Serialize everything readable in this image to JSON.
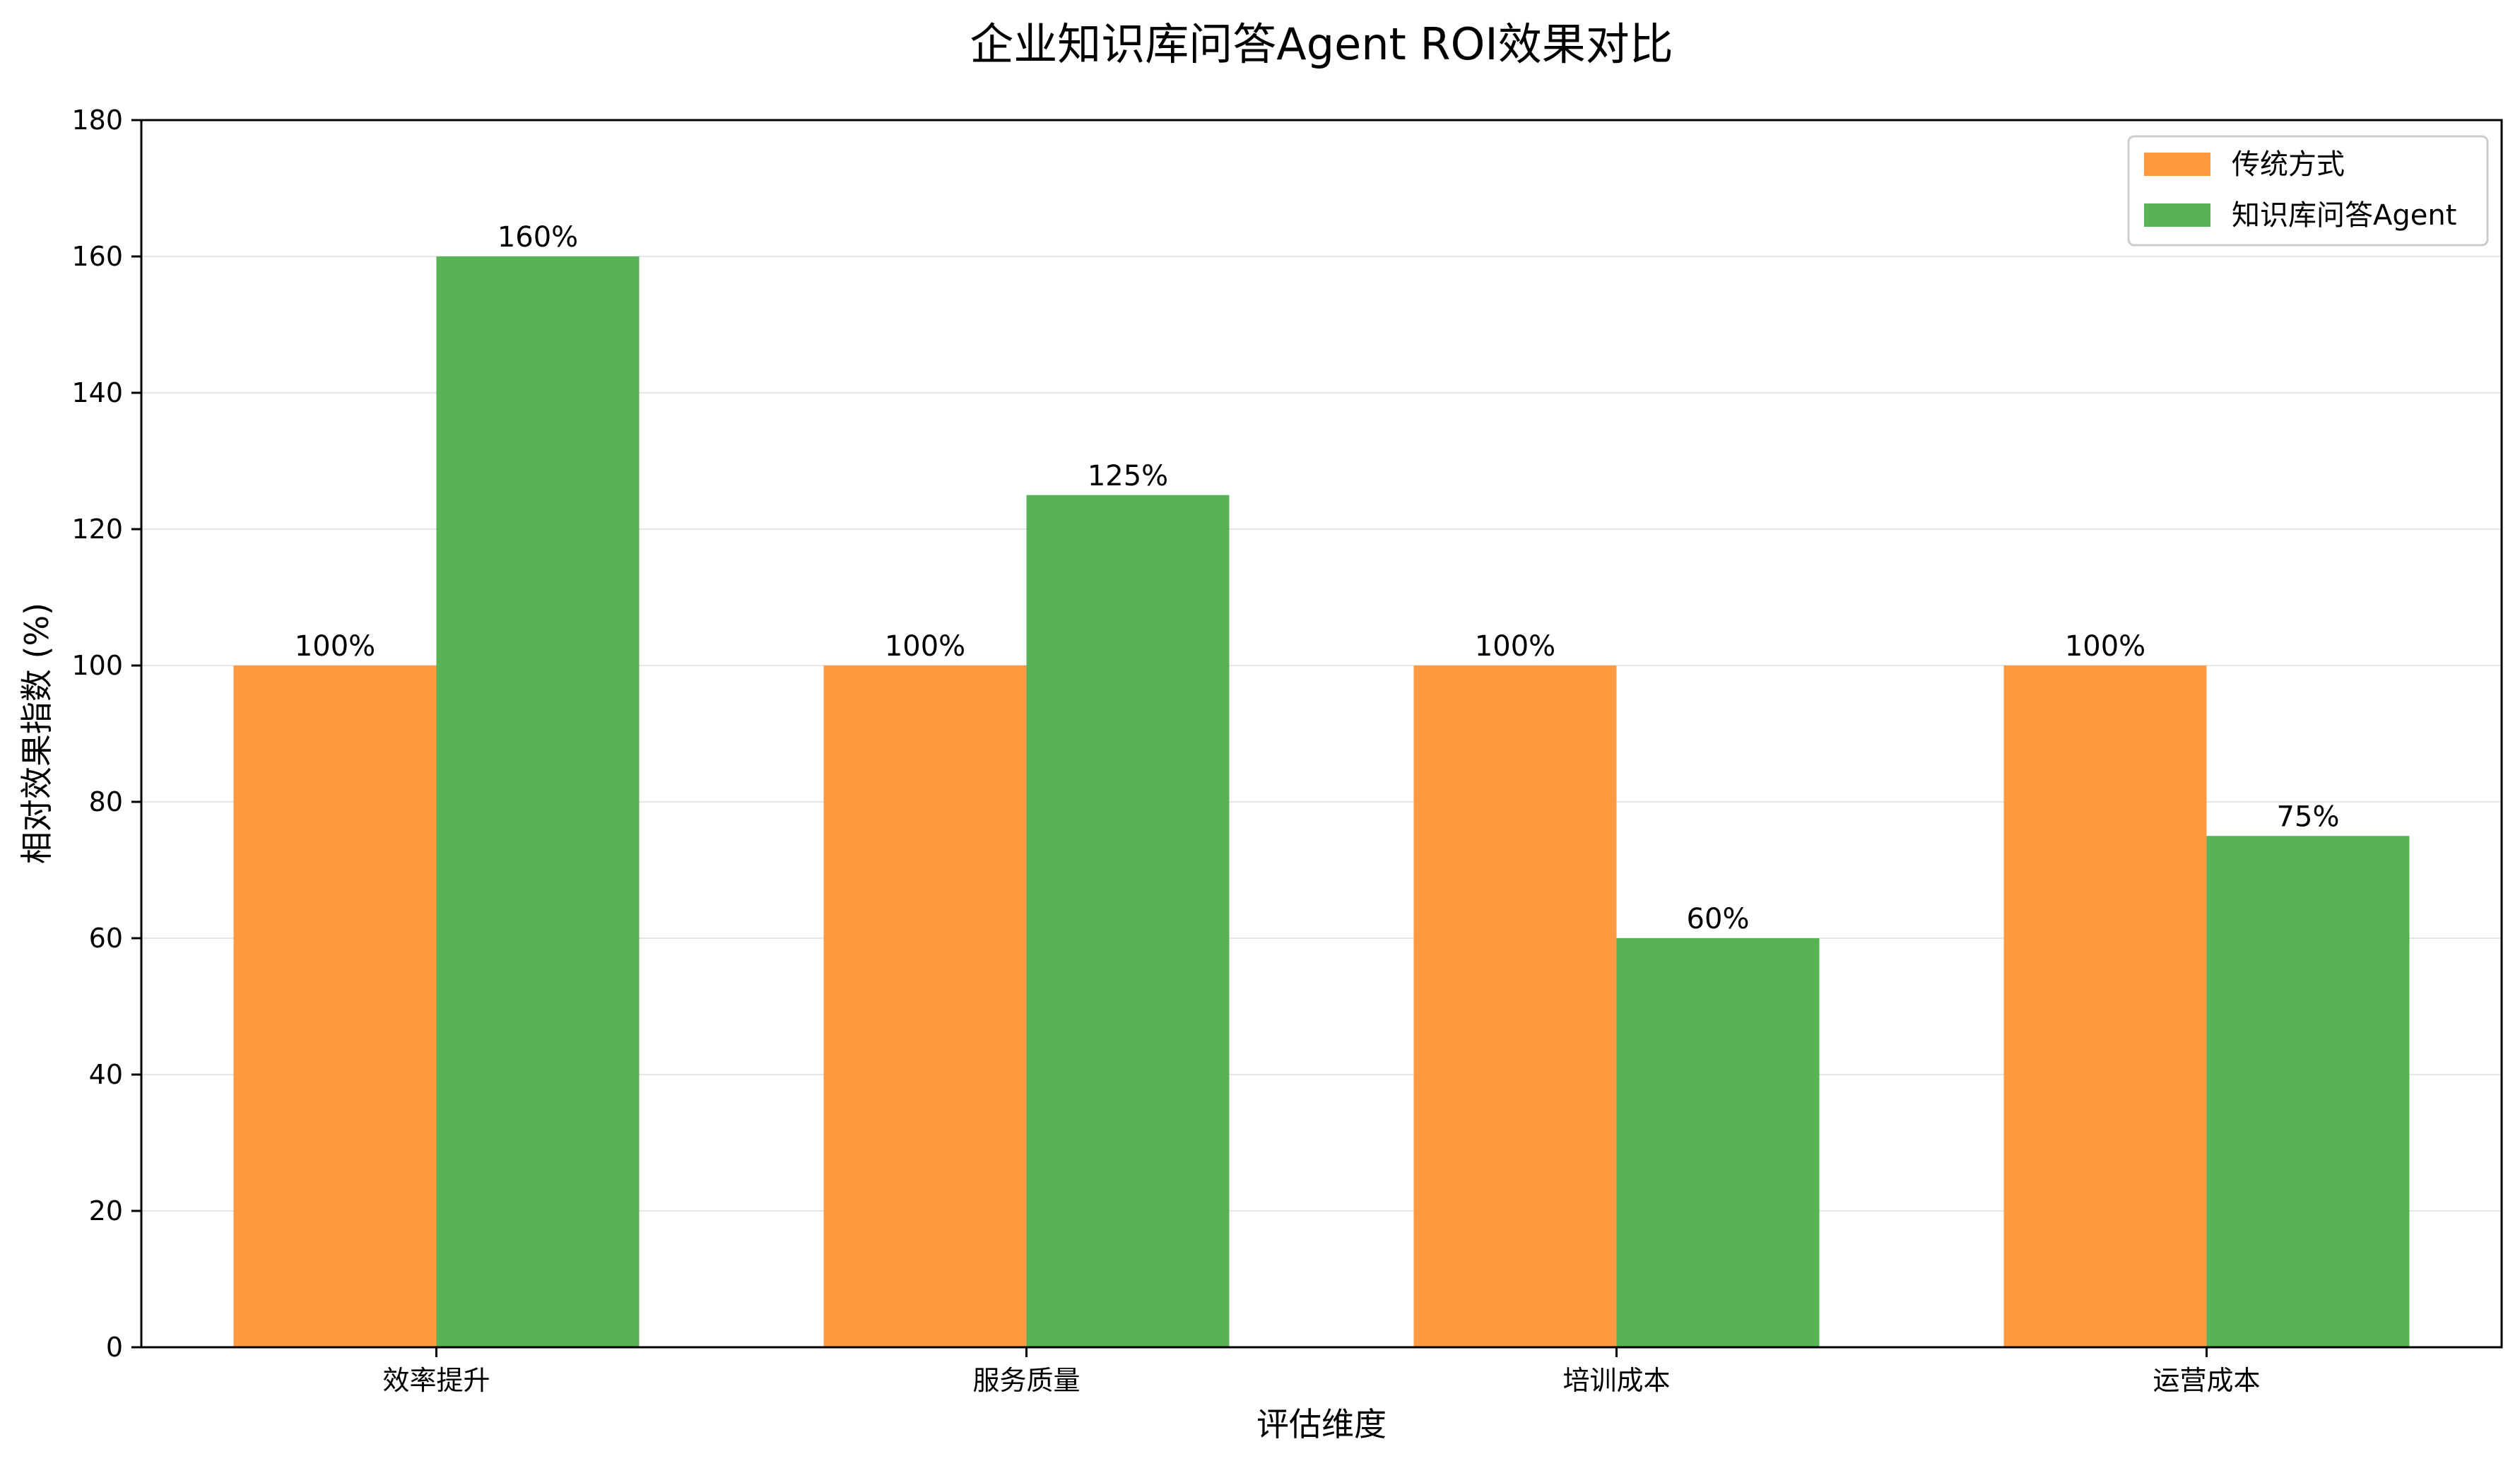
{
  "chart_data": {
    "type": "bar",
    "title": "企业知识库问答Agent ROI效果对比",
    "xlabel": "评估维度",
    "ylabel": "相对效果指数 (%)",
    "categories": [
      "效率提升",
      "服务质量",
      "培训成本",
      "运营成本"
    ],
    "series": [
      {
        "name": "传统方式",
        "values": [
          100,
          100,
          100,
          100
        ],
        "labels": [
          "100%",
          "100%",
          "100%",
          "100%"
        ],
        "color": "#ff9a40"
      },
      {
        "name": "知识库问答Agent",
        "values": [
          160,
          125,
          60,
          75
        ],
        "labels": [
          "160%",
          "125%",
          "60%",
          "75%"
        ],
        "color": "#57b356"
      }
    ],
    "ylim": [
      0,
      180
    ],
    "yticks": [
      0,
      20,
      40,
      60,
      80,
      100,
      120,
      140,
      160,
      180
    ],
    "grid": "y",
    "legend_position": "top-right"
  }
}
